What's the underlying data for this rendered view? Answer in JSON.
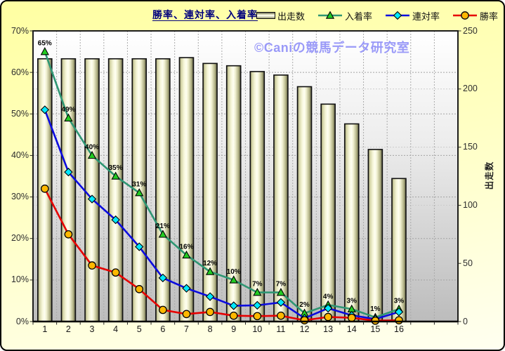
{
  "title": "勝率、連対率、入着率",
  "watermark": "©Caniの競馬データ研究室",
  "legend": {
    "items": [
      {
        "key": "starts",
        "label": "出走数",
        "kind": "bar",
        "line_color": "#111111",
        "marker": "none",
        "marker_fill": "#f2f2cc"
      },
      {
        "key": "place-rate",
        "label": "入着率",
        "kind": "line",
        "line_color": "#2e9673",
        "marker": "triangle",
        "marker_fill": "#22cc22"
      },
      {
        "key": "quinella-rate",
        "label": "連対率",
        "kind": "line",
        "line_color": "#0b0bdf",
        "marker": "diamond",
        "marker_fill": "#00e8ff"
      },
      {
        "key": "win-rate",
        "label": "勝率",
        "kind": "line",
        "line_color": "#e60000",
        "marker": "circle",
        "marker_fill": "#ffb800"
      }
    ]
  },
  "chart_data": {
    "type": "combo-bar-line",
    "categories": [
      "1",
      "2",
      "3",
      "4",
      "5",
      "6",
      "7",
      "8",
      "9",
      "10",
      "11",
      "12",
      "13",
      "14",
      "15",
      "16"
    ],
    "total_slots": 18,
    "left_axis": {
      "min": 0,
      "max": 70,
      "grid_step": 10,
      "ticks": [
        "70%",
        "60%",
        "50%",
        "40%",
        "30%",
        "20%",
        "10%",
        "0%"
      ]
    },
    "right_axis": {
      "min": 0,
      "max": 250,
      "grid_step": 50,
      "ticks": [
        "250",
        "200",
        "150",
        "100",
        "50",
        "0"
      ],
      "label": "出走数"
    },
    "series": [
      {
        "key": "starts",
        "name": "出走数",
        "type": "bar",
        "axis": "right",
        "values": [
          226,
          226,
          226,
          226,
          226,
          226,
          227,
          222,
          220,
          215,
          212,
          202,
          187,
          170,
          148,
          123
        ],
        "fill": "#f2f2cc",
        "stroke": "#111111"
      },
      {
        "key": "place-rate",
        "name": "入着率",
        "type": "line",
        "axis": "left",
        "color": "#2e9673",
        "marker": "triangle",
        "marker_fill": "#22cc22",
        "values": [
          65,
          49,
          40,
          35,
          31,
          21,
          16,
          12,
          10,
          7,
          7,
          2,
          4,
          3,
          1,
          3
        ],
        "labels": [
          "65%",
          "49%",
          "40%",
          "35%",
          "31%",
          "21%",
          "16%",
          "12%",
          "10%",
          "7%",
          "7%",
          "2%",
          "4%",
          "3%",
          "1%",
          "3%"
        ]
      },
      {
        "key": "quinella-rate",
        "name": "連対率",
        "type": "line",
        "axis": "left",
        "color": "#0b0bdf",
        "marker": "diamond",
        "marker_fill": "#00e8ff",
        "values": [
          51,
          36,
          29.5,
          24.5,
          18,
          10.5,
          8,
          6,
          3.8,
          3.9,
          4.6,
          0.8,
          3.2,
          1.5,
          0.6,
          2.3
        ]
      },
      {
        "key": "win-rate",
        "name": "勝率",
        "type": "line",
        "axis": "left",
        "color": "#e60000",
        "marker": "circle",
        "marker_fill": "#ffb800",
        "values": [
          32,
          21,
          13.5,
          11.8,
          7.8,
          2.8,
          1.8,
          2.3,
          1.4,
          1.3,
          1.4,
          0.3,
          1.1,
          0.9,
          0.2,
          0.3
        ]
      }
    ]
  }
}
